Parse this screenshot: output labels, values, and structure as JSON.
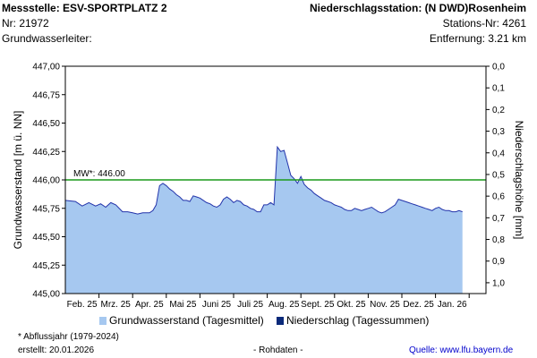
{
  "header": {
    "station_label": "Messstelle: ESV-SPORTPLATZ 2",
    "station_nr": "Nr: 21972",
    "aquifer": "Grundwasserleiter:",
    "precip_station": "Niederschlagsstation: (N DWD)Rosenheim",
    "precip_nr": "Stations-Nr: 4261",
    "distance": "Entfernung: 3.21 km"
  },
  "footer": {
    "note": "* Abflussjahr (1979-2024)",
    "created": "erstellt:  20.01.2026",
    "raw": "- Rohdaten -",
    "source": "Quelle: www.lfu.bayern.de"
  },
  "colors": {
    "area_fill": "#a6c8f0",
    "line": "#2233aa",
    "mw_line": "#1a9a1a",
    "precip_bar": "#0b2a7a"
  },
  "chart_data": {
    "type": "area",
    "ylabel": "Grundwasserstand [m ü. NN]",
    "y2label": "Niederschlagshöhe [mm]",
    "ylim": [
      445.0,
      447.0
    ],
    "yticks": [
      "445,00",
      "445,25",
      "445,50",
      "445,75",
      "446,00",
      "446,25",
      "446,50",
      "446,75",
      "447,00"
    ],
    "yticks_values": [
      445.0,
      445.25,
      445.5,
      445.75,
      446.0,
      446.25,
      446.5,
      446.75,
      447.0
    ],
    "y2lim": [
      0.0,
      1.05
    ],
    "y2ticks": [
      "0,0",
      "0,1",
      "0,2",
      "0,3",
      "0,4",
      "0,5",
      "0,6",
      "0,7",
      "0,8",
      "0,9",
      "1,0"
    ],
    "y2ticks_values": [
      0.0,
      0.1,
      0.2,
      0.3,
      0.4,
      0.5,
      0.6,
      0.7,
      0.8,
      0.9,
      1.0
    ],
    "x_range_months": [
      0,
      12.5
    ],
    "xticks": [
      "Feb. 25",
      "Mrz. 25",
      "Apr. 25",
      "Mai 25",
      "Juni 25",
      "Juli 25",
      "Aug. 25",
      "Sept. 25",
      "Okt. 25",
      "Nov. 25",
      "Dez. 25",
      "Jan. 26"
    ],
    "mw": {
      "label": "MW*: 446.00",
      "value": 446.0
    },
    "legend": [
      "Grundwasserstand (Tagesmittel)",
      "Niederschlag (Tagessummen)"
    ],
    "series": [
      {
        "name": "Grundwasserstand (Tagesmittel)",
        "x": [
          0.0,
          0.3,
          0.5,
          0.7,
          0.9,
          1.05,
          1.2,
          1.35,
          1.5,
          1.7,
          1.85,
          2.0,
          2.15,
          2.3,
          2.5,
          2.6,
          2.7,
          2.8,
          2.9,
          3.0,
          3.1,
          3.2,
          3.3,
          3.4,
          3.5,
          3.6,
          3.7,
          3.8,
          3.9,
          4.0,
          4.1,
          4.2,
          4.3,
          4.4,
          4.5,
          4.6,
          4.7,
          4.8,
          4.9,
          5.0,
          5.1,
          5.2,
          5.3,
          5.4,
          5.5,
          5.6,
          5.7,
          5.8,
          5.9,
          6.0,
          6.1,
          6.2,
          6.3,
          6.4,
          6.5,
          6.6,
          6.7,
          6.8,
          6.9,
          7.0,
          7.1,
          7.2,
          7.3,
          7.4,
          7.5,
          7.6,
          7.7,
          7.8,
          7.9,
          8.0,
          8.1,
          8.2,
          8.3,
          8.4,
          8.5,
          8.6,
          8.7,
          8.8,
          8.9,
          9.0,
          9.1,
          9.2,
          9.3,
          9.4,
          9.5,
          9.6,
          9.7,
          9.8,
          9.9,
          10.0,
          10.1,
          10.2,
          10.3,
          10.4,
          10.5,
          10.6,
          10.7,
          10.8,
          10.9,
          11.0,
          11.1,
          11.2,
          11.3,
          11.4,
          11.5,
          11.6,
          11.7,
          11.8
        ],
        "y": [
          445.82,
          445.81,
          445.77,
          445.8,
          445.77,
          445.79,
          445.76,
          445.8,
          445.78,
          445.72,
          445.72,
          445.71,
          445.7,
          445.71,
          445.71,
          445.73,
          445.78,
          445.95,
          445.97,
          445.95,
          445.92,
          445.9,
          445.87,
          445.85,
          445.82,
          445.82,
          445.81,
          445.86,
          445.85,
          445.84,
          445.82,
          445.8,
          445.79,
          445.77,
          445.76,
          445.78,
          445.83,
          445.85,
          445.83,
          445.8,
          445.82,
          445.81,
          445.78,
          445.77,
          445.75,
          445.74,
          445.72,
          445.72,
          445.78,
          445.78,
          445.8,
          445.78,
          446.29,
          446.25,
          446.26,
          446.15,
          446.04,
          446.01,
          445.97,
          446.03,
          445.96,
          445.93,
          445.91,
          445.88,
          445.86,
          445.84,
          445.82,
          445.81,
          445.8,
          445.78,
          445.77,
          445.76,
          445.74,
          445.73,
          445.73,
          445.75,
          445.74,
          445.73,
          445.74,
          445.75,
          445.76,
          445.74,
          445.72,
          445.71,
          445.72,
          445.74,
          445.76,
          445.78,
          445.83,
          445.82,
          445.81,
          445.8,
          445.79,
          445.78,
          445.77,
          445.76,
          445.75,
          445.74,
          445.73,
          445.75,
          445.76,
          445.74,
          445.73,
          445.73,
          445.72,
          445.72,
          445.73,
          445.72
        ]
      }
    ]
  }
}
